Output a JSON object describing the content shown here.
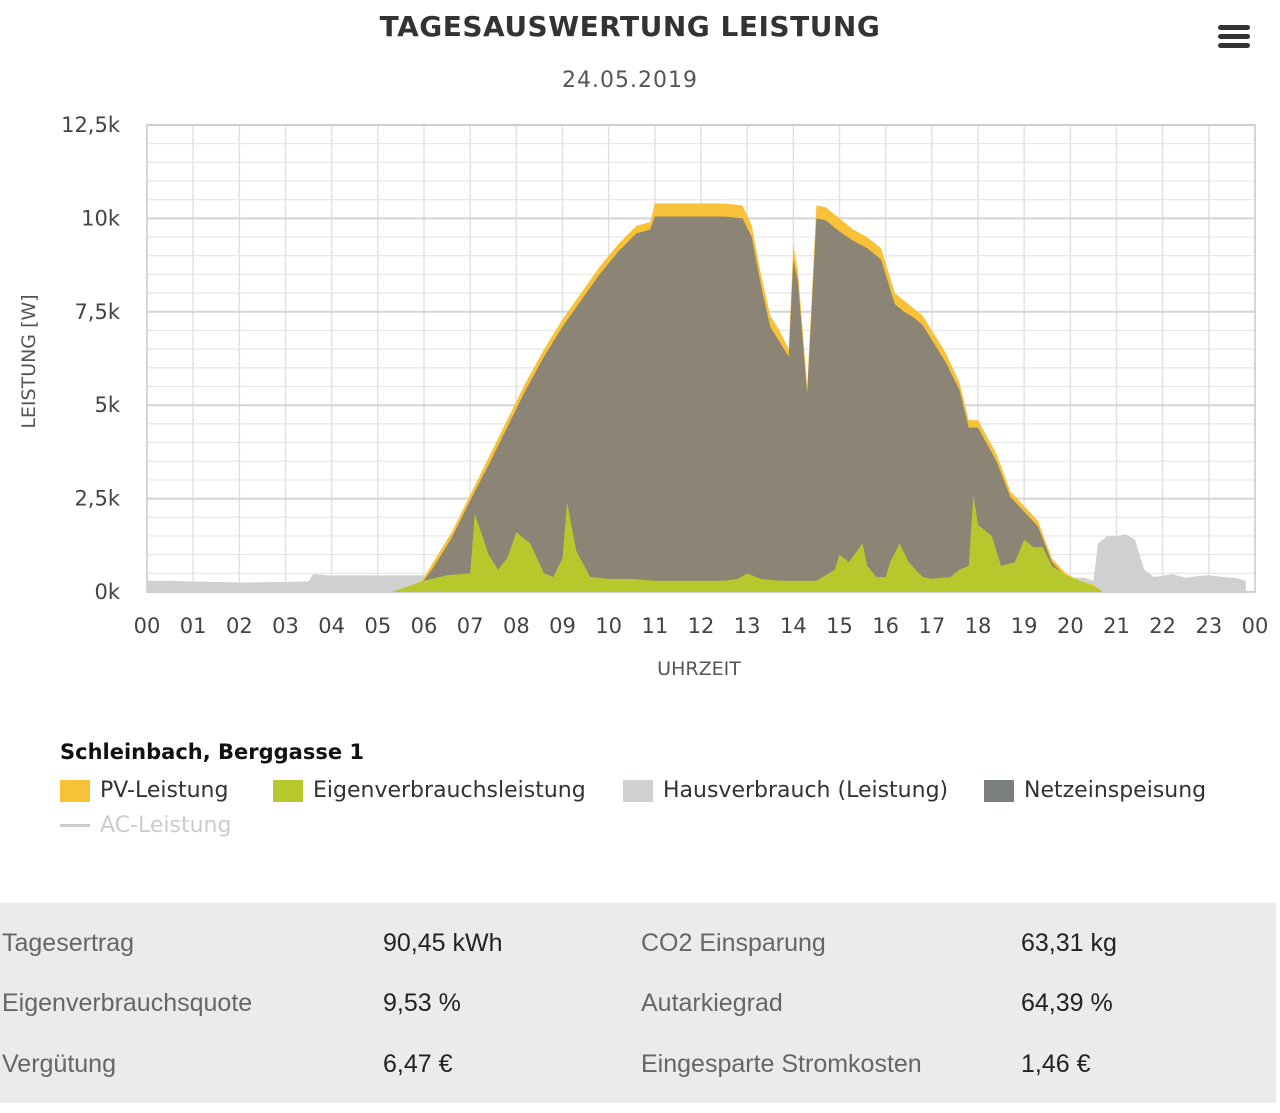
{
  "chart": {
    "title": "TAGESAUSWERTUNG LEISTUNG",
    "subtitle": "24.05.2019",
    "menu_icon": "hamburger-menu-icon"
  },
  "chart_data": {
    "type": "area",
    "title": "TAGESAUSWERTUNG LEISTUNG",
    "subtitle": "24.05.2019",
    "xlabel": "UHRZEIT",
    "ylabel": "LEISTUNG [W]",
    "xlim": [
      0,
      24
    ],
    "ylim": [
      0,
      12500
    ],
    "x_tick_labels": [
      "00",
      "01",
      "02",
      "03",
      "04",
      "05",
      "06",
      "07",
      "08",
      "09",
      "10",
      "11",
      "12",
      "13",
      "14",
      "15",
      "16",
      "17",
      "18",
      "19",
      "20",
      "21",
      "22",
      "23",
      "00"
    ],
    "y_tick_labels": [
      "0k",
      "2,5k",
      "5k",
      "7,5k",
      "10k",
      "12,5k"
    ],
    "y_tick_values": [
      0,
      2500,
      5000,
      7500,
      10000,
      12500
    ],
    "grid": true,
    "legend_placement": "bottom",
    "series": [
      {
        "name": "Hausverbrauch (Leistung)",
        "color": "#cfd0d0",
        "points": [
          [
            0,
            300
          ],
          [
            0.5,
            300
          ],
          [
            1,
            280
          ],
          [
            1.5,
            270
          ],
          [
            2,
            250
          ],
          [
            2.5,
            260
          ],
          [
            3,
            270
          ],
          [
            3.5,
            280
          ],
          [
            3.6,
            480
          ],
          [
            4,
            440
          ],
          [
            4.5,
            450
          ],
          [
            5,
            440
          ],
          [
            5.5,
            450
          ],
          [
            5.9,
            450
          ],
          [
            6.1,
            450
          ],
          [
            20.3,
            380
          ],
          [
            20.5,
            300
          ],
          [
            20.6,
            1300
          ],
          [
            20.8,
            1500
          ],
          [
            21,
            1500
          ],
          [
            21.2,
            1550
          ],
          [
            21.4,
            1400
          ],
          [
            21.6,
            600
          ],
          [
            21.8,
            400
          ],
          [
            22,
            430
          ],
          [
            22.2,
            480
          ],
          [
            22.5,
            380
          ],
          [
            22.8,
            430
          ],
          [
            23,
            450
          ],
          [
            23.3,
            400
          ],
          [
            23.6,
            370
          ],
          [
            23.8,
            300
          ]
        ]
      },
      {
        "name": "PV-Leistung",
        "color": "#f7c237",
        "points": [
          [
            5.3,
            0
          ],
          [
            5.9,
            200
          ],
          [
            6.2,
            800
          ],
          [
            6.6,
            1600
          ],
          [
            7,
            2600
          ],
          [
            7.4,
            3600
          ],
          [
            7.8,
            4600
          ],
          [
            8.2,
            5600
          ],
          [
            8.6,
            6500
          ],
          [
            9,
            7300
          ],
          [
            9.4,
            8000
          ],
          [
            9.8,
            8700
          ],
          [
            10.2,
            9300
          ],
          [
            10.6,
            9800
          ],
          [
            10.9,
            9900
          ],
          [
            11,
            10400
          ],
          [
            11.5,
            10400
          ],
          [
            12,
            10400
          ],
          [
            12.5,
            10400
          ],
          [
            12.9,
            10350
          ],
          [
            13.1,
            9800
          ],
          [
            13.3,
            8500
          ],
          [
            13.5,
            7400
          ],
          [
            13.7,
            7000
          ],
          [
            13.9,
            6500
          ],
          [
            14,
            9300
          ],
          [
            14.1,
            8600
          ],
          [
            14.3,
            5500
          ],
          [
            14.5,
            10350
          ],
          [
            14.7,
            10300
          ],
          [
            15,
            10000
          ],
          [
            15.3,
            9700
          ],
          [
            15.6,
            9500
          ],
          [
            15.9,
            9200
          ],
          [
            16.2,
            8000
          ],
          [
            16.4,
            7800
          ],
          [
            16.6,
            7600
          ],
          [
            16.8,
            7400
          ],
          [
            17,
            7000
          ],
          [
            17.3,
            6400
          ],
          [
            17.6,
            5600
          ],
          [
            17.8,
            4600
          ],
          [
            18,
            4600
          ],
          [
            18.4,
            3700
          ],
          [
            18.7,
            2700
          ],
          [
            19,
            2300
          ],
          [
            19.3,
            1900
          ],
          [
            19.6,
            900
          ],
          [
            19.9,
            500
          ],
          [
            20.2,
            300
          ],
          [
            20.5,
            200
          ],
          [
            20.7,
            0
          ]
        ]
      },
      {
        "name": "Netzeinspeisung",
        "color": "#8c8474",
        "points": [
          [
            5.3,
            0
          ],
          [
            5.9,
            150
          ],
          [
            6.2,
            650
          ],
          [
            6.6,
            1450
          ],
          [
            7,
            2450
          ],
          [
            7.4,
            3400
          ],
          [
            7.8,
            4400
          ],
          [
            8.2,
            5400
          ],
          [
            8.6,
            6300
          ],
          [
            9,
            7100
          ],
          [
            9.4,
            7800
          ],
          [
            9.8,
            8500
          ],
          [
            10.2,
            9100
          ],
          [
            10.6,
            9600
          ],
          [
            10.9,
            9700
          ],
          [
            11,
            10050
          ],
          [
            11.5,
            10050
          ],
          [
            12,
            10050
          ],
          [
            12.5,
            10050
          ],
          [
            12.9,
            10000
          ],
          [
            13.1,
            9500
          ],
          [
            13.3,
            8200
          ],
          [
            13.5,
            7100
          ],
          [
            13.7,
            6700
          ],
          [
            13.9,
            6300
          ],
          [
            14,
            8900
          ],
          [
            14.1,
            8300
          ],
          [
            14.3,
            5300
          ],
          [
            14.5,
            10000
          ],
          [
            14.7,
            9950
          ],
          [
            15,
            9650
          ],
          [
            15.3,
            9400
          ],
          [
            15.6,
            9200
          ],
          [
            15.9,
            8900
          ],
          [
            16.2,
            7700
          ],
          [
            16.4,
            7500
          ],
          [
            16.6,
            7350
          ],
          [
            16.8,
            7150
          ],
          [
            17,
            6750
          ],
          [
            17.3,
            6150
          ],
          [
            17.6,
            5400
          ],
          [
            17.8,
            4400
          ],
          [
            18,
            4400
          ],
          [
            18.4,
            3500
          ],
          [
            18.7,
            2550
          ],
          [
            19,
            2150
          ],
          [
            19.3,
            1750
          ],
          [
            19.6,
            800
          ],
          [
            19.9,
            400
          ],
          [
            20.2,
            250
          ],
          [
            20.5,
            150
          ],
          [
            20.7,
            0
          ]
        ]
      },
      {
        "name": "Eigenverbrauchsleistung",
        "color": "#b6c82c",
        "points": [
          [
            5.3,
            0
          ],
          [
            6,
            300
          ],
          [
            6.5,
            450
          ],
          [
            7,
            500
          ],
          [
            7.1,
            2100
          ],
          [
            7.4,
            1000
          ],
          [
            7.6,
            600
          ],
          [
            7.8,
            900
          ],
          [
            8,
            1600
          ],
          [
            8.3,
            1300
          ],
          [
            8.6,
            500
          ],
          [
            8.8,
            400
          ],
          [
            9,
            900
          ],
          [
            9.1,
            2400
          ],
          [
            9.3,
            1100
          ],
          [
            9.6,
            400
          ],
          [
            10,
            350
          ],
          [
            10.5,
            350
          ],
          [
            11,
            300
          ],
          [
            11.5,
            300
          ],
          [
            12,
            300
          ],
          [
            12.5,
            300
          ],
          [
            12.8,
            350
          ],
          [
            13,
            500
          ],
          [
            13.3,
            350
          ],
          [
            13.7,
            300
          ],
          [
            14,
            300
          ],
          [
            14.5,
            300
          ],
          [
            14.9,
            600
          ],
          [
            15,
            1000
          ],
          [
            15.2,
            800
          ],
          [
            15.5,
            1300
          ],
          [
            15.6,
            700
          ],
          [
            15.8,
            400
          ],
          [
            16,
            400
          ],
          [
            16.1,
            800
          ],
          [
            16.3,
            1300
          ],
          [
            16.5,
            800
          ],
          [
            16.8,
            400
          ],
          [
            17,
            350
          ],
          [
            17.4,
            400
          ],
          [
            17.6,
            600
          ],
          [
            17.8,
            700
          ],
          [
            17.9,
            2600
          ],
          [
            18,
            1800
          ],
          [
            18.3,
            1500
          ],
          [
            18.5,
            700
          ],
          [
            18.8,
            800
          ],
          [
            19,
            1400
          ],
          [
            19.2,
            1200
          ],
          [
            19.4,
            1200
          ],
          [
            19.6,
            700
          ],
          [
            19.9,
            450
          ],
          [
            20.2,
            300
          ],
          [
            20.5,
            150
          ],
          [
            20.7,
            0
          ]
        ]
      },
      {
        "name": "AC-Leistung",
        "color": "#cccccc",
        "hidden": true,
        "points": []
      }
    ]
  },
  "legend": {
    "group_title": "Schleinbach, Berggasse 1",
    "items": [
      {
        "label": "PV-Leistung",
        "color": "#f7c237"
      },
      {
        "label": "Eigenverbrauchsleistung",
        "color": "#b6c82c"
      },
      {
        "label": "Hausverbrauch (Leistung)",
        "color": "#cfd0d0"
      },
      {
        "label": "Netzeinspeisung",
        "color": "#7b7e7f"
      },
      {
        "label": "AC-Leistung",
        "color": "#cccccc"
      }
    ]
  },
  "stats": {
    "rows": [
      {
        "label1": "Tagesertrag",
        "value1": "90,45 kWh",
        "label2": "CO2 Einsparung",
        "value2": "63,31 kg"
      },
      {
        "label1": "Eigenverbrauchsquote",
        "value1": "9,53 %",
        "label2": "Autarkiegrad",
        "value2": "64,39 %"
      },
      {
        "label1": "Vergütung",
        "value1": "6,47 €",
        "label2": "Eingesparte Stromkosten",
        "value2": "1,46 €"
      }
    ]
  }
}
